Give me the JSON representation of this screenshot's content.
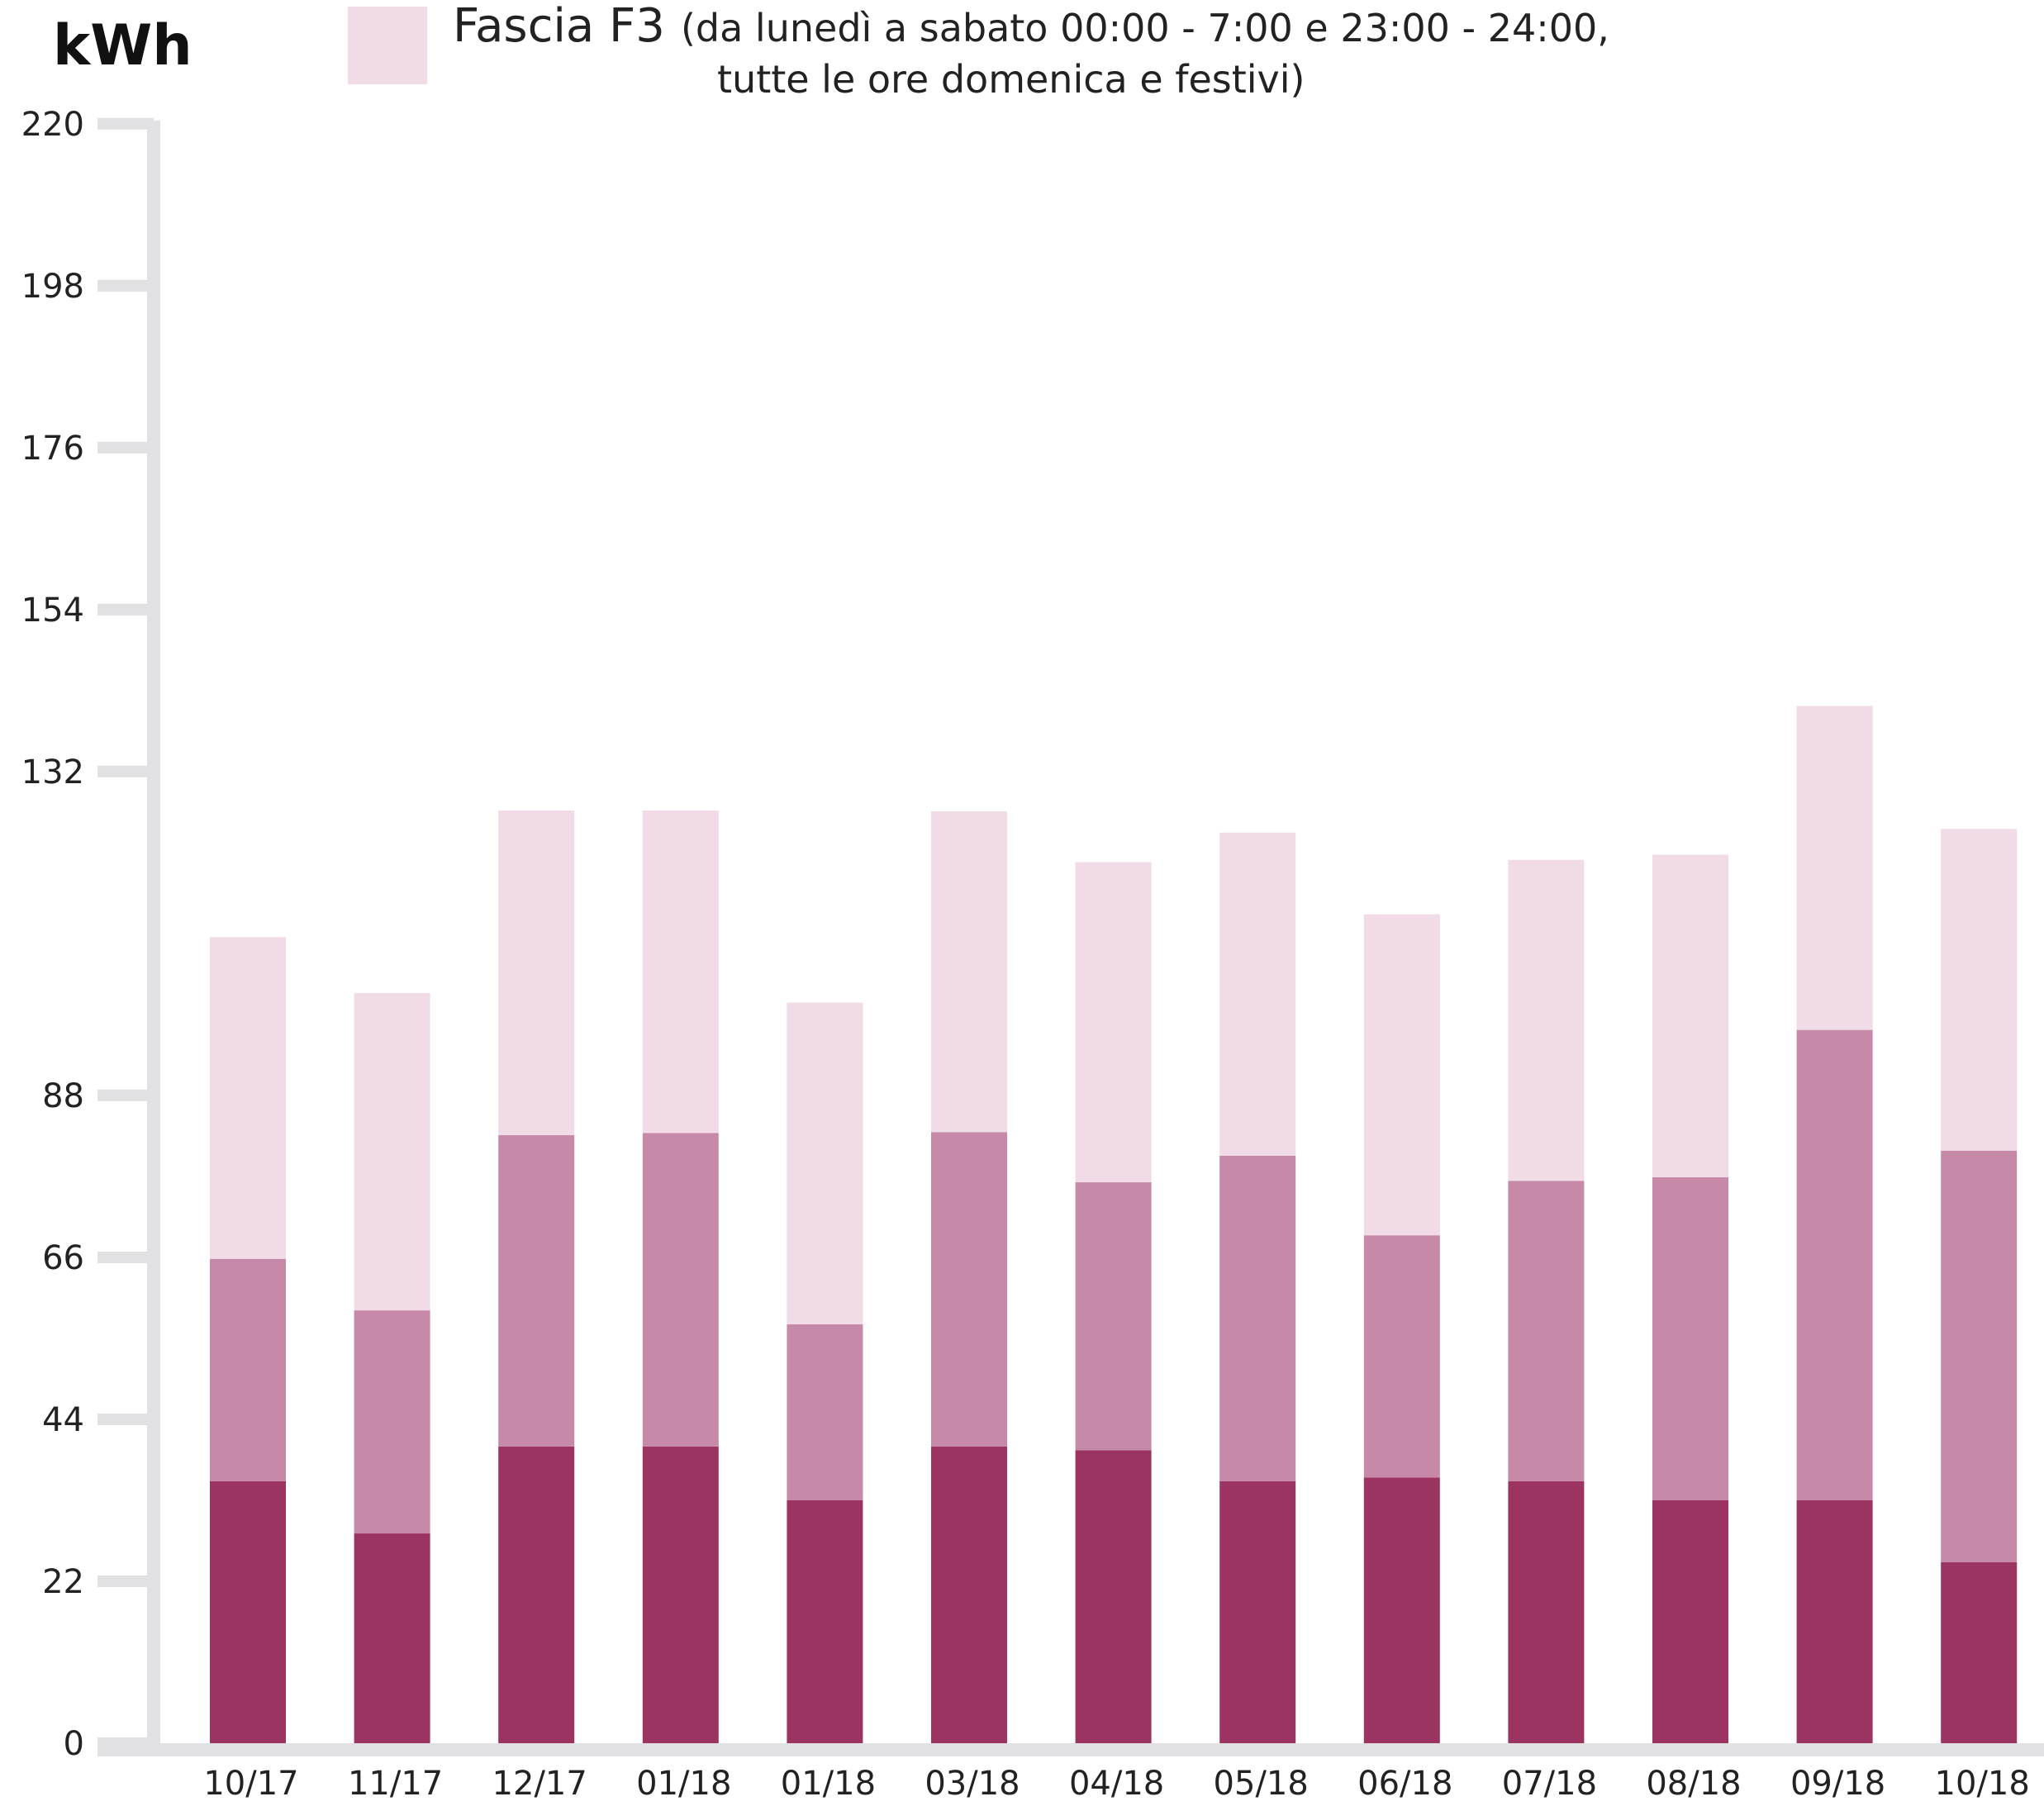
{
  "unit_label": "kWh",
  "legend": {
    "name": "Fascia F3",
    "detail_line1": "(da lunedì a sabato 00:00 - 7:00 e 23:00 - 24:00,",
    "detail_line2": "tutte le ore domenica e festivi)",
    "color": "#f0dbe6"
  },
  "chart_data": {
    "type": "bar",
    "stacked": true,
    "ylabel": "kWh",
    "ylim": [
      0,
      220
    ],
    "yticks": [
      0,
      22,
      44,
      66,
      88,
      132,
      154,
      176,
      198,
      220
    ],
    "grid": false,
    "legend_position": "top",
    "categories": [
      "10/17",
      "11/17",
      "12/17",
      "01/18",
      "01/18",
      "03/18",
      "04/18",
      "05/18",
      "06/18",
      "07/18",
      "08/18",
      "09/18",
      "10/18"
    ],
    "series": [
      {
        "color": "#9c3461",
        "values": [
          35.6,
          28.5,
          40.3,
          40.3,
          33,
          40.3,
          39.8,
          35.6,
          36.1,
          35.6,
          33,
          33,
          24.6
        ]
      },
      {
        "color": "#c689a8",
        "values": [
          30.2,
          30.3,
          42.3,
          42.6,
          23.9,
          42.7,
          36.4,
          44.2,
          32.9,
          40.8,
          43.9,
          63.9,
          55.9
        ]
      },
      {
        "name": "Fascia F3",
        "color": "#f0dbe6",
        "values": [
          43.7,
          43.1,
          44.1,
          43.8,
          43.7,
          43.6,
          43.5,
          43.9,
          43.6,
          43.6,
          43.8,
          44,
          43.7
        ]
      }
    ]
  }
}
